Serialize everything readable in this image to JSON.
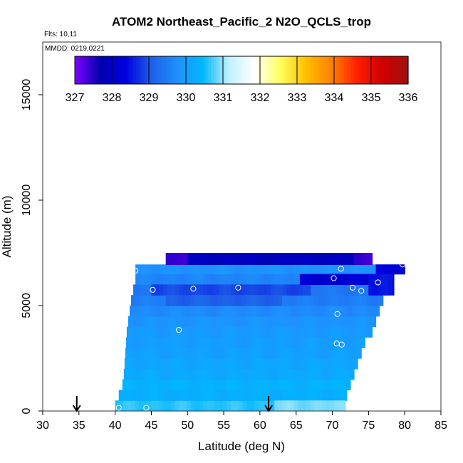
{
  "chart_data": {
    "type": "heatmap",
    "title": "ATOM2 Northeast_Pacific_2 N2O_QCLS_trop",
    "flights_text": "Flts: 10,11",
    "mmdd_text": "MMDD: 0219,0221",
    "xlabel": "Latitude (deg N)",
    "ylabel": "Altitude (m)",
    "xlim": [
      30,
      85
    ],
    "ylim": [
      0,
      17500
    ],
    "xticks": [
      "30",
      "35",
      "40",
      "45",
      "50",
      "55",
      "60",
      "65",
      "70",
      "75",
      "80",
      "85"
    ],
    "yticks": [
      "0",
      "5000",
      "10000",
      "15000"
    ],
    "colorbar": {
      "ticks": [
        "327",
        "328",
        "329",
        "330",
        "331",
        "332",
        "333",
        "334",
        "335",
        "336"
      ],
      "range": [
        327,
        336
      ],
      "stops": [
        "#8000ff",
        "#0000b0",
        "#0000e0",
        "#1e60e8",
        "#1e90ff",
        "#00b8ff",
        "#c0f0ff",
        "#ffffff",
        "#ffff60",
        "#ffc000",
        "#ff8000",
        "#ff2000",
        "#d00000",
        "#a01010"
      ]
    },
    "arrows_lat": [
      34.7,
      61.2
    ],
    "layers": [
      {
        "alt0": 0,
        "alt1": 500,
        "lat0": 40.0,
        "lat1": 71.8,
        "value": 330.6
      },
      {
        "alt0": 500,
        "alt1": 1000,
        "lat0": 40.5,
        "lat1": 72.0,
        "value": 330.3
      },
      {
        "alt0": 1000,
        "alt1": 1500,
        "lat0": 41.0,
        "lat1": 72.5,
        "value": 330.35
      },
      {
        "alt0": 1500,
        "alt1": 2000,
        "lat0": 41.2,
        "lat1": 73.0,
        "value": 330.2
      },
      {
        "alt0": 2000,
        "alt1": 2500,
        "lat0": 41.3,
        "lat1": 73.5,
        "value": 330.15
      },
      {
        "alt0": 2500,
        "alt1": 3000,
        "lat0": 41.4,
        "lat1": 74.0,
        "value": 330.05
      },
      {
        "alt0": 3000,
        "alt1": 3500,
        "lat0": 41.5,
        "lat1": 74.5,
        "value": 330.0
      },
      {
        "alt0": 3500,
        "alt1": 4000,
        "lat0": 41.6,
        "lat1": 75.5,
        "value": 329.95
      },
      {
        "alt0": 4000,
        "alt1": 4500,
        "lat0": 41.8,
        "lat1": 76.0,
        "value": 329.85
      },
      {
        "alt0": 4500,
        "alt1": 5000,
        "lat0": 42.0,
        "lat1": 76.5,
        "value": 329.7
      },
      {
        "alt0": 5000,
        "alt1": 5500,
        "lat0": 42.2,
        "lat1": 77.0,
        "value": 329.5
      },
      {
        "alt0": 5500,
        "alt1": 6000,
        "lat0": 42.5,
        "lat1": 77.5,
        "value": 329.4
      },
      {
        "alt0": 6000,
        "alt1": 6500,
        "lat0": 42.8,
        "lat1": 78.5,
        "value": 329.6
      },
      {
        "alt0": 6500,
        "alt1": 6950,
        "lat0": 42.8,
        "lat1": 80.0,
        "value": 329.8
      },
      {
        "alt0": 6950,
        "alt1": 7500,
        "lat0": 47.0,
        "lat1": 75.5,
        "value": 327.9
      }
    ],
    "patches": [
      {
        "alt0": 5500,
        "alt1": 6000,
        "lat0": 45.0,
        "lat1": 67.0,
        "value": 328.9
      },
      {
        "alt0": 5000,
        "alt1": 5500,
        "lat0": 47.0,
        "lat1": 63.0,
        "value": 329.1
      },
      {
        "alt0": 6000,
        "alt1": 6500,
        "lat0": 65.5,
        "lat1": 77.5,
        "value": 328.2
      },
      {
        "alt0": 6500,
        "alt1": 6950,
        "lat0": 76.0,
        "lat1": 80.0,
        "value": 328.3
      },
      {
        "alt0": 5500,
        "alt1": 6500,
        "lat0": 75.0,
        "lat1": 78.5,
        "value": 328.5
      },
      {
        "alt0": 6950,
        "alt1": 7500,
        "lat0": 47.0,
        "lat1": 50.0,
        "value": 327.4
      },
      {
        "alt0": 6950,
        "alt1": 7500,
        "lat0": 73.0,
        "lat1": 75.5,
        "value": 327.4
      },
      {
        "alt0": 0,
        "alt1": 500,
        "lat0": 62.0,
        "lat1": 71.8,
        "value": 330.9
      }
    ],
    "points": [
      {
        "lat": 40.5,
        "alt": 150
      },
      {
        "lat": 44.3,
        "alt": 150
      },
      {
        "lat": 42.8,
        "alt": 6650
      },
      {
        "lat": 45.2,
        "alt": 5750
      },
      {
        "lat": 50.8,
        "alt": 5800
      },
      {
        "lat": 57.0,
        "alt": 5850
      },
      {
        "lat": 48.8,
        "alt": 3850
      },
      {
        "lat": 70.2,
        "alt": 6300
      },
      {
        "lat": 71.2,
        "alt": 6750
      },
      {
        "lat": 72.8,
        "alt": 5850
      },
      {
        "lat": 74.0,
        "alt": 5700
      },
      {
        "lat": 76.3,
        "alt": 6100
      },
      {
        "lat": 79.7,
        "alt": 6950
      },
      {
        "lat": 70.7,
        "alt": 4600
      },
      {
        "lat": 70.6,
        "alt": 3200
      },
      {
        "lat": 71.3,
        "alt": 3150
      }
    ]
  }
}
